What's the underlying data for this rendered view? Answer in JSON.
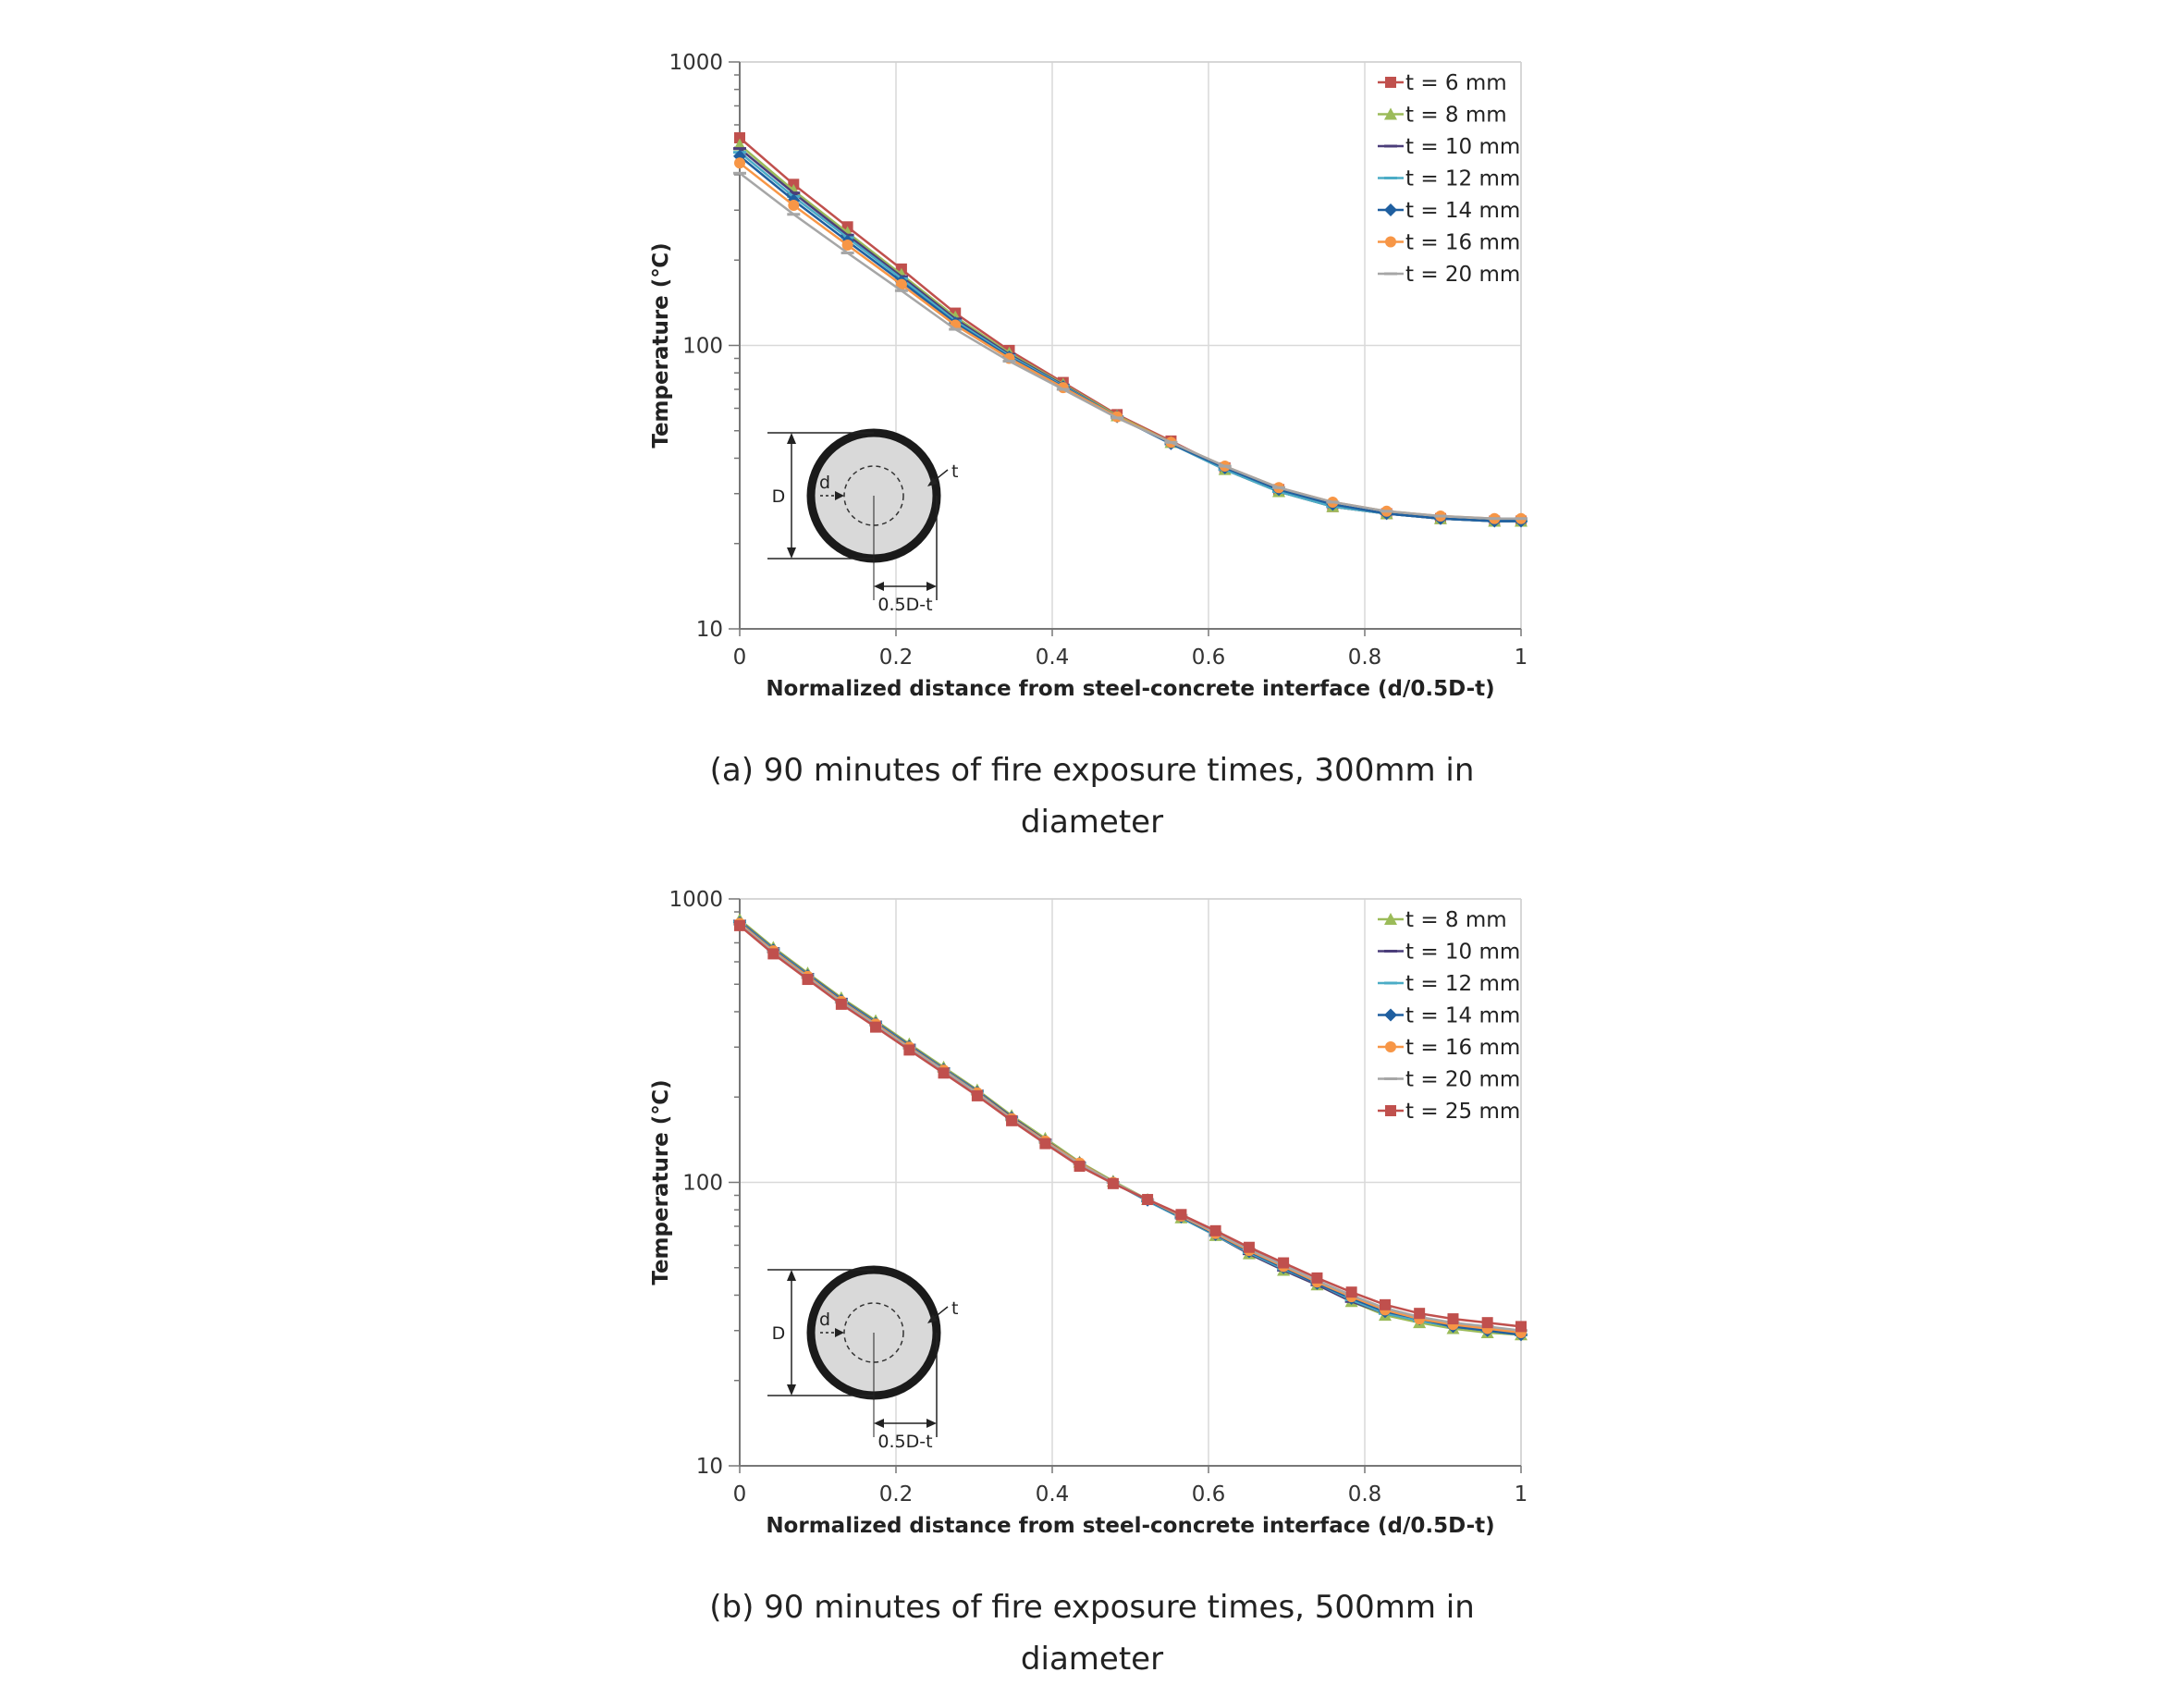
{
  "captions": [
    {
      "line1": "(a) 90 minutes of fire exposure times, 300mm in",
      "line2": "diameter"
    },
    {
      "line1": "(b) 90 minutes of fire exposure times, 500mm in",
      "line2": "diameter"
    }
  ],
  "inset": {
    "D": "D",
    "d": "d",
    "t": "t",
    "half": "0.5D-t"
  },
  "chart_data": [
    {
      "type": "line",
      "title": "",
      "xlabel": "Normalized distance from steel-concrete interface (d/0.5D-t)",
      "ylabel": "Temperature (℃)",
      "xlim": [
        0,
        1
      ],
      "ylim": [
        10,
        1000
      ],
      "yscale": "log",
      "xticks": [
        "0",
        "0.2",
        "0.4",
        "0.6",
        "0.8",
        "1"
      ],
      "yticks": [
        "10",
        "100",
        "1000"
      ],
      "grid": true,
      "legend_position": "top-right",
      "x": [
        0,
        0.069,
        0.138,
        0.207,
        0.276,
        0.345,
        0.414,
        0.483,
        0.552,
        0.621,
        0.69,
        0.759,
        0.828,
        0.897,
        0.966,
        1.0
      ],
      "series": [
        {
          "name": "t = 6 mm",
          "color": "#c0504d",
          "marker": "square",
          "values": [
            540,
            370,
            262,
            186,
            130,
            96,
            74,
            57,
            46,
            37,
            31,
            27,
            25.5,
            24.5,
            24,
            24
          ]
        },
        {
          "name": "t = 8 mm",
          "color": "#9bbb59",
          "marker": "triangle",
          "values": [
            510,
            352,
            250,
            178,
            126,
            94,
            73,
            56.5,
            45.5,
            36.5,
            30.5,
            27,
            25.5,
            24.5,
            24,
            24
          ]
        },
        {
          "name": "t = 10 mm",
          "color": "#4b3e7a",
          "marker": "dash",
          "values": [
            495,
            345,
            245,
            175,
            124,
            93,
            72.5,
            56,
            45,
            36.5,
            30.5,
            27,
            25.5,
            24.5,
            24,
            24
          ]
        },
        {
          "name": "t = 12 mm",
          "color": "#4bacc6",
          "marker": "dash",
          "values": [
            480,
            335,
            240,
            172,
            122,
            92,
            72,
            56,
            45,
            36.5,
            30.5,
            27,
            25.5,
            24.5,
            24,
            24
          ]
        },
        {
          "name": "t = 14 mm",
          "color": "#1f5fa0",
          "marker": "diamond",
          "values": [
            465,
            325,
            233,
            168,
            120,
            91,
            71.5,
            56,
            45,
            37,
            31,
            27.5,
            25.5,
            24.5,
            24,
            24
          ]
        },
        {
          "name": "t = 16 mm",
          "color": "#f79646",
          "marker": "circle",
          "values": [
            440,
            312,
            226,
            164,
            118,
            90,
            71,
            56,
            45.5,
            37.5,
            31.5,
            28,
            26,
            25,
            24.5,
            24.5
          ]
        },
        {
          "name": "t = 20 mm",
          "color": "#a6a6a6",
          "marker": "dash",
          "values": [
            405,
            290,
            212,
            156,
            114,
            88,
            70,
            55.5,
            45.5,
            37.5,
            31.5,
            28,
            26,
            25,
            24.5,
            24.5
          ]
        }
      ]
    },
    {
      "type": "line",
      "title": "",
      "xlabel": "Normalized distance from steel-concrete interface (d/0.5D-t)",
      "ylabel": "Temperature (℃)",
      "xlim": [
        0,
        1
      ],
      "ylim": [
        10,
        1000
      ],
      "yscale": "log",
      "xticks": [
        "0",
        "0.2",
        "0.4",
        "0.6",
        "0.8",
        "1"
      ],
      "yticks": [
        "10",
        "100",
        "1000"
      ],
      "grid": true,
      "legend_position": "top-right",
      "x": [
        0,
        0.043,
        0.087,
        0.13,
        0.174,
        0.217,
        0.261,
        0.304,
        0.348,
        0.391,
        0.435,
        0.478,
        0.522,
        0.565,
        0.609,
        0.652,
        0.696,
        0.739,
        0.783,
        0.826,
        0.87,
        0.913,
        0.957,
        1.0
      ],
      "series": [
        {
          "name": "t = 8 mm",
          "color": "#9bbb59",
          "marker": "triangle",
          "values": [
            845,
            675,
            548,
            448,
            372,
            308,
            255,
            212,
            172,
            143,
            118,
            101,
            87,
            75,
            65,
            56,
            49,
            43.5,
            38,
            34,
            32,
            30.5,
            29.5,
            29
          ]
        },
        {
          "name": "t = 10 mm",
          "color": "#4b3e7a",
          "marker": "dash",
          "values": [
            835,
            668,
            542,
            443,
            368,
            305,
            252,
            210,
            170,
            141,
            117,
            100,
            86,
            75,
            65,
            56,
            49,
            43.5,
            38,
            34.5,
            32.5,
            31,
            30,
            29
          ]
        },
        {
          "name": "t = 12 mm",
          "color": "#4bacc6",
          "marker": "dash",
          "values": [
            830,
            664,
            539,
            440,
            366,
            303,
            251,
            209,
            169,
            140,
            117,
            100,
            86,
            75,
            65,
            56.5,
            49.5,
            44,
            38.5,
            34.5,
            32.5,
            31,
            30,
            29
          ]
        },
        {
          "name": "t = 14 mm",
          "color": "#1f5fa0",
          "marker": "diamond",
          "values": [
            825,
            660,
            536,
            438,
            364,
            302,
            250,
            208,
            169,
            140,
            117,
            100,
            86.5,
            75.5,
            65.5,
            57,
            50,
            44,
            39,
            35,
            33,
            31,
            30,
            29
          ]
        },
        {
          "name": "t = 16 mm",
          "color": "#f79646",
          "marker": "circle",
          "values": [
            820,
            656,
            533,
            435,
            362,
            300,
            249,
            207,
            168,
            140,
            117,
            100,
            87,
            76,
            66,
            57.5,
            50.5,
            44.5,
            39.5,
            35.5,
            33,
            31.5,
            30.5,
            29.5
          ]
        },
        {
          "name": "t = 20 mm",
          "color": "#a6a6a6",
          "marker": "dash",
          "values": [
            815,
            650,
            528,
            432,
            359,
            298,
            248,
            206,
            167,
            139,
            116,
            100,
            87,
            76.5,
            66.5,
            58,
            51,
            45,
            40,
            36,
            33.5,
            32,
            31,
            30
          ]
        },
        {
          "name": "t = 25 mm",
          "color": "#c0504d",
          "marker": "square",
          "values": [
            805,
            640,
            520,
            425,
            353,
            293,
            243,
            202,
            165,
            137,
            114,
            99,
            87,
            77,
            67.5,
            59,
            52,
            46,
            41,
            37,
            34.5,
            33,
            32,
            31
          ]
        }
      ]
    }
  ]
}
